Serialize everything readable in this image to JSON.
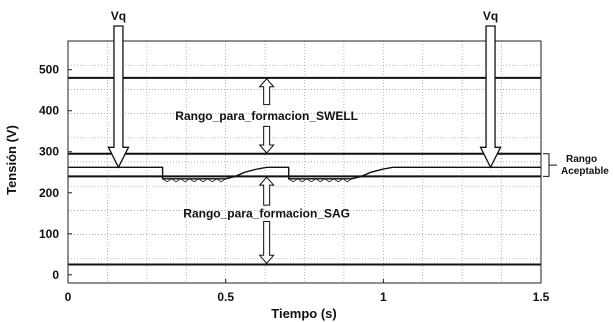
{
  "chart_data": {
    "type": "line",
    "title": "",
    "xlabel": "Tiempo (s)",
    "ylabel": "Tensión (V)",
    "xlim": [
      0,
      1.5
    ],
    "ylim": [
      -20,
      570
    ],
    "xticks": [
      0,
      0.5,
      1,
      1.5
    ],
    "xtick_labels": [
      "0",
      "0.5",
      "1",
      "1.5"
    ],
    "yticks": [
      0,
      100,
      200,
      300,
      400,
      500
    ],
    "ytick_labels": [
      "0",
      "100",
      "200",
      "300",
      "400",
      "500"
    ],
    "grid": true,
    "series": [
      {
        "values": [
          [
            0,
            480
          ],
          [
            1.5,
            480
          ]
        ]
      },
      {
        "values": [
          [
            0,
            295
          ],
          [
            1.5,
            295
          ]
        ]
      },
      {
        "values": [
          [
            0,
            240
          ],
          [
            1.5,
            240
          ]
        ]
      },
      {
        "values": [
          [
            0,
            25
          ],
          [
            1.5,
            25
          ]
        ]
      },
      {
        "values": [
          [
            0,
            262
          ],
          [
            0.3,
            262
          ],
          [
            0.3,
            234
          ],
          [
            0.5,
            234
          ],
          [
            0.53,
            240
          ],
          [
            0.56,
            250
          ],
          [
            0.6,
            258
          ],
          [
            0.63,
            262
          ],
          [
            0.7,
            262
          ],
          [
            0.7,
            234
          ],
          [
            0.9,
            234
          ],
          [
            0.93,
            240
          ],
          [
            0.96,
            250
          ],
          [
            1.0,
            258
          ],
          [
            1.03,
            262
          ],
          [
            1.5,
            262
          ]
        ]
      }
    ],
    "annotations": [
      {
        "text": "Vq",
        "x": 0.16,
        "y": 262
      },
      {
        "text": "Vq",
        "x": 1.34,
        "y": 262
      },
      {
        "text": "Rango_para_formacion_SWELL",
        "x": 0.63,
        "y": 387
      },
      {
        "text": "Rango_para_formacion_SAG",
        "x": 0.63,
        "y": 150
      },
      {
        "text": "Rango",
        "x": 1.5,
        "y": 285
      },
      {
        "text": "Aceptable",
        "x": 1.5,
        "y": 260
      }
    ]
  }
}
